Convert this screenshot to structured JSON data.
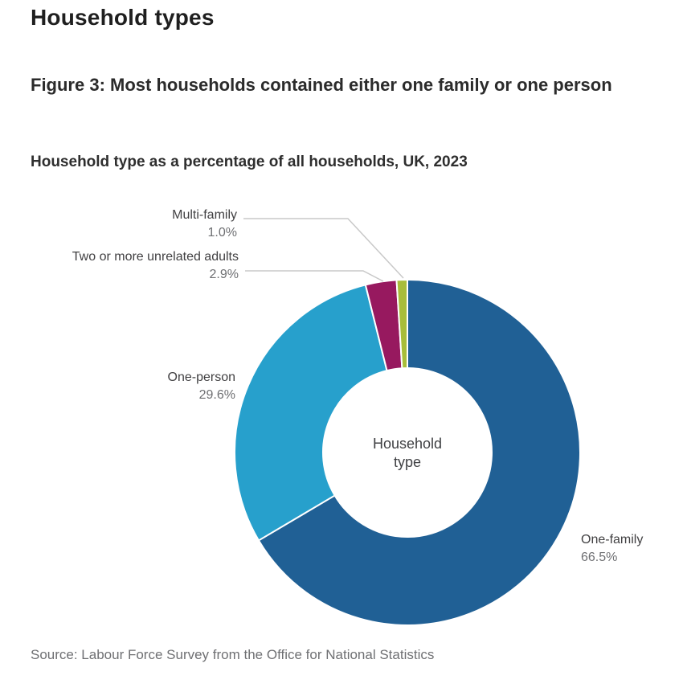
{
  "page": {
    "title": "Household types",
    "figure_title": "Figure 3: Most households contained either one family or one person",
    "subtitle": "Household type as a percentage of all households, UK, 2023",
    "source": "Source: Labour Force Survey from the Office for National Statistics"
  },
  "chart_data": {
    "type": "pie",
    "variant": "donut",
    "title": "Household type as a percentage of all households, UK, 2023",
    "center_label": "Household type",
    "start_angle_deg": -90,
    "direction": "clockwise",
    "legend_position": "callout-labels",
    "units": "percent",
    "slices": [
      {
        "label": "One-family",
        "value": 66.5,
        "display": "66.5%",
        "color": "#206095"
      },
      {
        "label": "One-person",
        "value": 29.6,
        "display": "29.6%",
        "color": "#27a0cc"
      },
      {
        "label": "Two or more unrelated adults",
        "value": 2.9,
        "display": "2.9%",
        "color": "#97195f"
      },
      {
        "label": "Multi-family",
        "value": 1.0,
        "display": "1.0%",
        "color": "#a8bd3a"
      }
    ],
    "leader_line_color": "#c8c8c8"
  }
}
